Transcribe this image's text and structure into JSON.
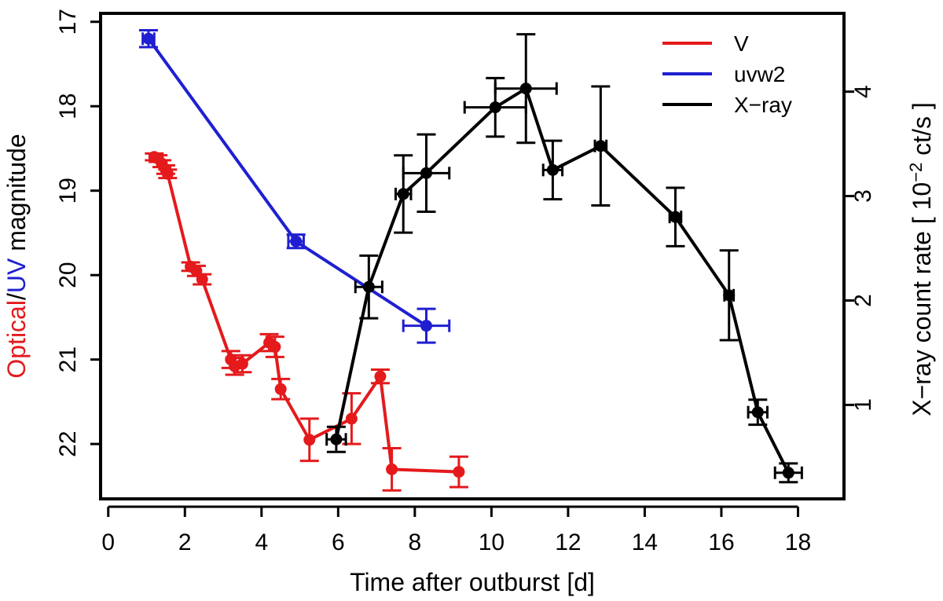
{
  "chart_data": {
    "type": "line",
    "xlabel": "Time after outburst [d]",
    "ylabel_left": {
      "parts": [
        {
          "text": "Optical",
          "color": "#e41a1c"
        },
        {
          "text": "/",
          "color": "#000000"
        },
        {
          "text": "UV",
          "color": "#1f1fd1"
        },
        {
          "text": " magnitude",
          "color": "#000000"
        }
      ]
    },
    "ylabel_right": {
      "prefix": "X−ray count rate [ 10",
      "exponent": "−2",
      "suffix": " ct/s ]"
    },
    "xlim": [
      -0.2,
      19.2
    ],
    "xticks": [
      0,
      2,
      4,
      6,
      8,
      10,
      12,
      14,
      16,
      18
    ],
    "ylim_left": [
      16.9,
      22.65
    ],
    "yticks_left": [
      17,
      18,
      19,
      20,
      21,
      22
    ],
    "ylim_right": [
      0.1,
      4.75
    ],
    "yticks_right": [
      1,
      2,
      3,
      4
    ],
    "legend": {
      "position": "top-right",
      "entries": [
        {
          "name": "V",
          "color": "#e41a1c"
        },
        {
          "name": "uvw2",
          "color": "#1f1fd1"
        },
        {
          "name": "X−ray",
          "color": "#000000"
        }
      ]
    },
    "series": [
      {
        "name": "V",
        "axis": "left",
        "color": "#e41a1c",
        "points": [
          {
            "x": 1.2,
            "y": 18.6,
            "yerr": 0.04
          },
          {
            "x": 1.3,
            "y": 18.62,
            "yerr": 0.04
          },
          {
            "x": 1.4,
            "y": 18.68,
            "yerr": 0.04
          },
          {
            "x": 1.5,
            "y": 18.75,
            "yerr": 0.05
          },
          {
            "x": 1.55,
            "y": 18.8,
            "yerr": 0.05
          },
          {
            "x": 2.15,
            "y": 19.9,
            "yerr": 0.05
          },
          {
            "x": 2.3,
            "y": 19.95,
            "yerr": 0.06
          },
          {
            "x": 2.45,
            "y": 20.05,
            "yerr": 0.06
          },
          {
            "x": 3.2,
            "y": 21.0,
            "yerr": 0.1
          },
          {
            "x": 3.3,
            "y": 21.08,
            "yerr": 0.1
          },
          {
            "x": 3.5,
            "y": 21.05,
            "yerr": 0.1
          },
          {
            "x": 4.2,
            "y": 20.8,
            "yerr": 0.1
          },
          {
            "x": 4.35,
            "y": 20.85,
            "yerr": 0.12
          },
          {
            "x": 4.5,
            "y": 21.35,
            "yerr": 0.12
          },
          {
            "x": 5.25,
            "y": 21.95,
            "yerr": 0.25
          },
          {
            "x": 6.35,
            "y": 21.7,
            "yerr": 0.3
          },
          {
            "x": 7.1,
            "y": 21.2,
            "yerr": 0.08
          },
          {
            "x": 7.4,
            "y": 22.3,
            "yerr": 0.25
          },
          {
            "x": 9.15,
            "y": 22.33,
            "yerr": 0.18
          }
        ]
      },
      {
        "name": "uvw2",
        "axis": "left",
        "color": "#1f1fd1",
        "points": [
          {
            "x": 1.05,
            "y": 17.2,
            "yerr": 0.1,
            "xerr": 0.15
          },
          {
            "x": 4.9,
            "y": 19.6,
            "yerr": 0.08,
            "xerr": 0.2
          },
          {
            "x": 8.3,
            "y": 20.6,
            "yerr": 0.2,
            "xerr": 0.6
          }
        ]
      },
      {
        "name": "X−ray",
        "axis": "right",
        "color": "#000000",
        "points": [
          {
            "x": 5.95,
            "y": 0.67,
            "yerr": 0.12,
            "xerr": 0.25
          },
          {
            "x": 6.8,
            "y": 2.13,
            "yerr": 0.3,
            "xerr": 0.35
          },
          {
            "x": 7.7,
            "y": 3.02,
            "yerr": 0.37,
            "xerr": 0.2
          },
          {
            "x": 8.3,
            "y": 3.22,
            "yerr": 0.37,
            "xerr": 0.6
          },
          {
            "x": 10.1,
            "y": 3.85,
            "yerr": 0.28,
            "xerr": 0.8
          },
          {
            "x": 10.9,
            "y": 4.03,
            "yerr": 0.52,
            "xerr": 0.8
          },
          {
            "x": 11.6,
            "y": 3.25,
            "yerr": 0.28,
            "xerr": 0.25
          },
          {
            "x": 12.85,
            "y": 3.48,
            "yerr": 0.57,
            "xerr": 0.15
          },
          {
            "x": 14.8,
            "y": 2.8,
            "yerr": 0.28,
            "xerr": 0.15
          },
          {
            "x": 16.2,
            "y": 2.05,
            "yerr": 0.43,
            "xerr": 0.12
          },
          {
            "x": 16.95,
            "y": 0.93,
            "yerr": 0.12,
            "xerr": 0.25
          },
          {
            "x": 17.75,
            "y": 0.35,
            "yerr": 0.09,
            "xerr": 0.35
          }
        ]
      }
    ]
  }
}
